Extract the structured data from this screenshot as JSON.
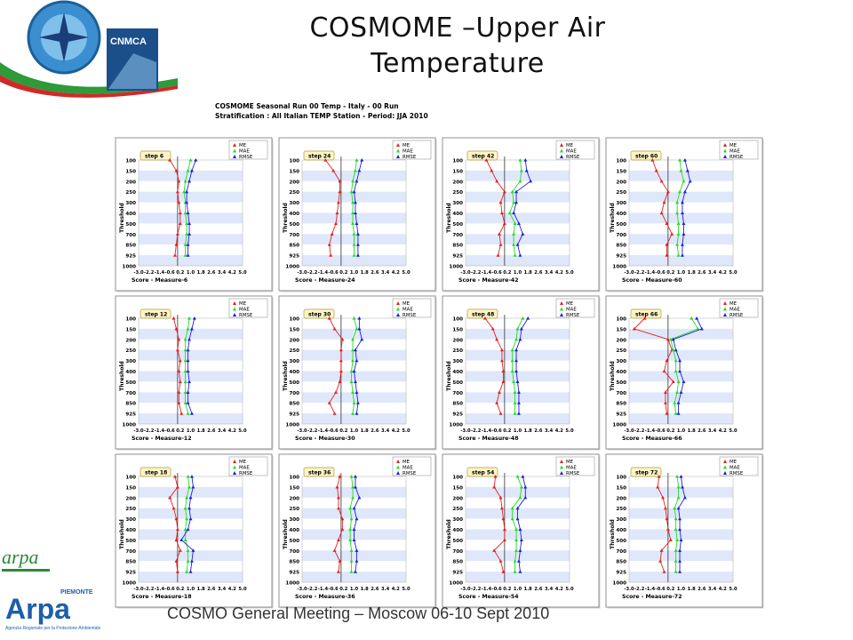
{
  "slide": {
    "title_line1": "COSMOME –Upper Air",
    "title_line2": "Temperature",
    "panel_title_line1": "COSMOME Seasonal Run 00 Temp - Italy - 00 Run",
    "panel_title_line2": "Stratification : All Italian TEMP Station  - Period: JJA 2010",
    "footer": "COSMO General Meeting – Moscow 06-10 Sept 2010",
    "logo_texts": [
      "CNMCA",
      "arpa",
      "Arpa",
      "PIEMONTE",
      "Agenzia Regionale per la Protezione Ambientale"
    ]
  },
  "colors": {
    "me": "#e8201e",
    "mae": "#22dd22",
    "rmse": "#1a22d8",
    "band": "#dfe7fb",
    "frame": "#909090",
    "blue_header": "#2a7fc8"
  },
  "chart_data": [
    {
      "type": "line",
      "step_label": "step 6",
      "xlabel": "Score - Measure-6",
      "ylabel": "Threshold",
      "y_categories": [
        "100",
        "150",
        "200",
        "250",
        "300",
        "400",
        "500",
        "700",
        "850",
        "925",
        "1000"
      ],
      "x_ticks": [
        "-3.0",
        "-2.2",
        "-1.4",
        "-0.6",
        "0.2",
        "1.0",
        "1.8",
        "2.6",
        "3.4",
        "4.2",
        "5.0"
      ],
      "xlim": [
        -3.0,
        5.0
      ],
      "legend": [
        "ME",
        "MAE",
        "RMSE"
      ],
      "series": [
        {
          "name": "ME",
          "values": [
            -0.6,
            -0.1,
            0.1,
            0.0,
            0.1,
            0.2,
            0.2,
            0.0,
            -0.1,
            -0.2
          ]
        },
        {
          "name": "MAE",
          "values": [
            1.0,
            0.8,
            0.6,
            0.5,
            0.6,
            0.6,
            0.7,
            0.7,
            0.6,
            0.6
          ]
        },
        {
          "name": "RMSE",
          "values": [
            1.4,
            1.1,
            0.9,
            0.7,
            0.7,
            0.8,
            0.9,
            0.9,
            0.8,
            0.8
          ]
        }
      ]
    },
    {
      "type": "line",
      "step_label": "step 24",
      "xlabel": "Score - Measure-24",
      "ylabel": "Threshold",
      "y_categories": [
        "100",
        "150",
        "200",
        "250",
        "300",
        "400",
        "500",
        "700",
        "850",
        "925",
        "1000"
      ],
      "x_ticks": [
        "-3.0",
        "-2.2",
        "-1.4",
        "-0.6",
        "0.2",
        "1.0",
        "1.8",
        "2.6",
        "3.4",
        "4.2",
        "5.0"
      ],
      "xlim": [
        -3.0,
        5.0
      ],
      "legend": [
        "ME",
        "MAE",
        "RMSE"
      ],
      "series": [
        {
          "name": "ME",
          "values": [
            -1.2,
            -0.6,
            -0.1,
            -0.1,
            -0.2,
            -0.3,
            -0.4,
            -0.7,
            -0.9,
            -0.8
          ]
        },
        {
          "name": "MAE",
          "values": [
            1.2,
            1.1,
            0.9,
            0.8,
            0.9,
            0.9,
            0.9,
            1.0,
            1.0,
            1.0
          ]
        },
        {
          "name": "RMSE",
          "values": [
            1.6,
            1.4,
            1.2,
            1.0,
            1.1,
            1.1,
            1.2,
            1.3,
            1.3,
            1.3
          ]
        }
      ]
    },
    {
      "type": "line",
      "step_label": "step 42",
      "xlabel": "Score - Measure-42",
      "ylabel": "Threshold",
      "y_categories": [
        "100",
        "150",
        "200",
        "250",
        "300",
        "400",
        "500",
        "700",
        "850",
        "925",
        "1000"
      ],
      "x_ticks": [
        "-3.0",
        "-2.2",
        "-1.4",
        "-0.6",
        "0.2",
        "1.0",
        "1.8",
        "2.6",
        "3.4",
        "4.2",
        "5.0"
      ],
      "xlim": [
        -3.0,
        5.0
      ],
      "legend": [
        "ME",
        "MAE",
        "RMSE"
      ],
      "series": [
        {
          "name": "ME",
          "values": [
            -1.4,
            -1.0,
            -0.6,
            0.0,
            -0.3,
            -0.2,
            0.0,
            -0.4,
            -0.3,
            -0.5
          ]
        },
        {
          "name": "MAE",
          "values": [
            1.2,
            1.3,
            1.2,
            0.6,
            0.7,
            0.4,
            0.8,
            0.7,
            0.7,
            0.8
          ]
        },
        {
          "name": "RMSE",
          "values": [
            1.6,
            1.7,
            2.0,
            0.9,
            0.9,
            0.7,
            1.1,
            1.4,
            1.0,
            1.2
          ]
        }
      ]
    },
    {
      "type": "line",
      "step_label": "step 60",
      "xlabel": "Score - Measure-60",
      "ylabel": "Threshold",
      "y_categories": [
        "100",
        "150",
        "200",
        "250",
        "300",
        "400",
        "500",
        "700",
        "850",
        "925",
        "1000"
      ],
      "x_ticks": [
        "-3.0",
        "-2.2",
        "-1.4",
        "-0.6",
        "0.2",
        "1.0",
        "1.8",
        "2.6",
        "3.4",
        "4.2",
        "5.0"
      ],
      "xlim": [
        -3.0,
        5.0
      ],
      "legend": [
        "ME",
        "MAE",
        "RMSE"
      ],
      "series": [
        {
          "name": "ME",
          "values": [
            -1.2,
            -0.9,
            -0.5,
            0.0,
            -0.3,
            -0.5,
            -0.1,
            0.3,
            -0.1,
            -0.1
          ]
        },
        {
          "name": "MAE",
          "values": [
            0.9,
            1.0,
            1.2,
            0.9,
            0.7,
            0.7,
            0.8,
            0.8,
            0.7,
            0.8
          ]
        },
        {
          "name": "RMSE",
          "values": [
            1.3,
            1.5,
            1.7,
            1.3,
            1.1,
            1.1,
            1.2,
            1.2,
            1.1,
            1.1
          ]
        }
      ]
    },
    {
      "type": "line",
      "step_label": "step 12",
      "xlabel": "Score - Measure-12",
      "ylabel": "Threshold",
      "y_categories": [
        "100",
        "150",
        "200",
        "250",
        "300",
        "400",
        "500",
        "700",
        "850",
        "925",
        "1000"
      ],
      "x_ticks": [
        "-3.0",
        "-2.2",
        "-1.4",
        "-0.6",
        "0.2",
        "1.0",
        "1.8",
        "2.6",
        "3.4",
        "4.2",
        "5.0"
      ],
      "xlim": [
        -3.0,
        5.0
      ],
      "legend": [
        "ME",
        "MAE",
        "RMSE"
      ],
      "series": [
        {
          "name": "ME",
          "values": [
            -0.3,
            -0.1,
            0.1,
            0.0,
            0.2,
            0.1,
            0.2,
            0.1,
            0.1,
            0.3
          ]
        },
        {
          "name": "MAE",
          "values": [
            0.9,
            0.8,
            0.6,
            0.6,
            0.6,
            0.6,
            0.6,
            0.6,
            0.6,
            0.8
          ]
        },
        {
          "name": "RMSE",
          "values": [
            1.3,
            1.1,
            0.9,
            0.8,
            0.8,
            0.8,
            0.9,
            0.8,
            0.8,
            1.1
          ]
        }
      ]
    },
    {
      "type": "line",
      "step_label": "step 30",
      "xlabel": "Score - Measure-30",
      "ylabel": "Threshold",
      "y_categories": [
        "100",
        "150",
        "200",
        "250",
        "300",
        "400",
        "500",
        "700",
        "850",
        "925",
        "1000"
      ],
      "x_ticks": [
        "-3.0",
        "-2.2",
        "-1.4",
        "-0.6",
        "0.2",
        "1.0",
        "1.8",
        "2.6",
        "3.4",
        "4.2",
        "5.0"
      ],
      "xlim": [
        -3.0,
        5.0
      ],
      "legend": [
        "ME",
        "MAE",
        "RMSE"
      ],
      "series": [
        {
          "name": "ME",
          "values": [
            -0.9,
            -0.5,
            0.1,
            0.0,
            0.0,
            0.0,
            -0.1,
            -0.4,
            -0.9,
            -0.5
          ]
        },
        {
          "name": "MAE",
          "values": [
            1.0,
            1.2,
            0.9,
            0.9,
            0.9,
            0.8,
            0.8,
            0.9,
            1.0,
            0.9
          ]
        },
        {
          "name": "RMSE",
          "values": [
            1.4,
            1.4,
            1.6,
            1.1,
            1.2,
            1.0,
            1.1,
            1.2,
            1.3,
            1.2
          ]
        }
      ]
    },
    {
      "type": "line",
      "step_label": "step 48",
      "xlabel": "Score - Measure-48",
      "ylabel": "Threshold",
      "y_categories": [
        "100",
        "150",
        "200",
        "250",
        "300",
        "400",
        "500",
        "700",
        "850",
        "925",
        "1000"
      ],
      "x_ticks": [
        "-3.0",
        "-2.2",
        "-1.4",
        "-0.6",
        "0.2",
        "1.0",
        "1.8",
        "2.6",
        "3.4",
        "4.2",
        "5.0"
      ],
      "xlim": [
        -3.0,
        5.0
      ],
      "legend": [
        "ME",
        "MAE",
        "RMSE"
      ],
      "series": [
        {
          "name": "ME",
          "values": [
            -1.5,
            -0.9,
            -0.6,
            -0.2,
            -0.2,
            -0.1,
            -0.1,
            -0.4,
            -0.6,
            -0.3
          ]
        },
        {
          "name": "MAE",
          "values": [
            1.4,
            1.0,
            0.9,
            0.6,
            0.6,
            0.6,
            0.7,
            0.8,
            0.8,
            0.8
          ]
        },
        {
          "name": "RMSE",
          "values": [
            1.8,
            1.3,
            1.2,
            0.9,
            0.9,
            0.9,
            1.0,
            1.1,
            1.1,
            1.1
          ]
        }
      ]
    },
    {
      "type": "line",
      "step_label": "step 66",
      "xlabel": "Score - Measure-66",
      "ylabel": "Threshold",
      "y_categories": [
        "100",
        "150",
        "200",
        "250",
        "300",
        "400",
        "500",
        "700",
        "850",
        "925",
        "1000"
      ],
      "x_ticks": [
        "-3.0",
        "-2.2",
        "-1.4",
        "-0.6",
        "0.2",
        "1.0",
        "1.8",
        "2.6",
        "3.4",
        "4.2",
        "5.0"
      ],
      "xlim": [
        -3.0,
        5.0
      ],
      "legend": [
        "ME",
        "MAE",
        "RMSE"
      ],
      "series": [
        {
          "name": "ME",
          "values": [
            -1.8,
            -2.6,
            0.0,
            0.3,
            -0.1,
            -0.3,
            0.4,
            -0.2,
            -0.2,
            -0.1
          ]
        },
        {
          "name": "MAE",
          "values": [
            1.8,
            2.3,
            0.2,
            0.4,
            0.6,
            0.6,
            0.8,
            0.7,
            0.5,
            0.6
          ]
        },
        {
          "name": "RMSE",
          "values": [
            2.2,
            2.6,
            0.4,
            0.6,
            0.9,
            0.9,
            1.2,
            1.0,
            0.8,
            0.8
          ]
        }
      ]
    },
    {
      "type": "line",
      "step_label": "step 18",
      "xlabel": "Score - Measure-18",
      "ylabel": "Threshold",
      "y_categories": [
        "100",
        "150",
        "200",
        "250",
        "300",
        "400",
        "500",
        "700",
        "850",
        "925",
        "1000"
      ],
      "x_ticks": [
        "-3.0",
        "-2.2",
        "-1.4",
        "-0.6",
        "0.2",
        "1.0",
        "1.8",
        "2.6",
        "3.4",
        "4.2",
        "5.0"
      ],
      "xlim": [
        -3.0,
        5.0
      ],
      "legend": [
        "ME",
        "MAE",
        "RMSE"
      ],
      "series": [
        {
          "name": "ME",
          "values": [
            -0.2,
            0.0,
            -0.6,
            -0.3,
            -0.1,
            0.0,
            -0.1,
            0.2,
            -0.1,
            0.0
          ]
        },
        {
          "name": "MAE",
          "values": [
            0.8,
            0.9,
            0.7,
            0.6,
            0.7,
            0.6,
            0.6,
            0.8,
            0.8,
            0.7
          ]
        },
        {
          "name": "RMSE",
          "values": [
            1.1,
            1.2,
            1.0,
            0.9,
            1.0,
            0.8,
            0.3,
            1.2,
            1.1,
            1.0
          ]
        }
      ]
    },
    {
      "type": "line",
      "step_label": "step 36",
      "xlabel": "Score - Measure-36",
      "ylabel": "Threshold",
      "y_categories": [
        "100",
        "150",
        "200",
        "250",
        "300",
        "400",
        "500",
        "700",
        "850",
        "925",
        "1000"
      ],
      "x_ticks": [
        "-3.0",
        "-2.2",
        "-1.4",
        "-0.6",
        "0.2",
        "1.0",
        "1.8",
        "2.6",
        "3.4",
        "4.2",
        "5.0"
      ],
      "xlim": [
        -3.0,
        5.0
      ],
      "legend": [
        "ME",
        "MAE",
        "RMSE"
      ],
      "series": [
        {
          "name": "ME",
          "values": [
            -0.1,
            -0.3,
            -0.2,
            -0.2,
            0.1,
            0.1,
            -0.2,
            -0.5,
            -0.1,
            -0.2
          ]
        },
        {
          "name": "MAE",
          "values": [
            0.8,
            0.9,
            0.9,
            0.7,
            0.8,
            0.7,
            0.7,
            0.8,
            0.8,
            0.8
          ]
        },
        {
          "name": "RMSE",
          "values": [
            1.1,
            1.1,
            1.4,
            1.0,
            1.2,
            1.0,
            1.0,
            1.2,
            1.2,
            1.1
          ]
        }
      ]
    },
    {
      "type": "line",
      "step_label": "step 54",
      "xlabel": "Score - Measure-54",
      "ylabel": "Threshold",
      "y_categories": [
        "100",
        "150",
        "200",
        "250",
        "300",
        "400",
        "500",
        "700",
        "850",
        "925",
        "1000"
      ],
      "x_ticks": [
        "-3.0",
        "-2.2",
        "-1.4",
        "-0.6",
        "0.2",
        "1.0",
        "1.8",
        "2.6",
        "3.4",
        "4.2",
        "5.0"
      ],
      "xlim": [
        -3.0,
        5.0
      ],
      "legend": [
        "ME",
        "MAE",
        "RMSE"
      ],
      "series": [
        {
          "name": "ME",
          "values": [
            -0.7,
            -0.8,
            -0.3,
            -0.2,
            -0.1,
            0.0,
            0.0,
            -0.8,
            -0.3,
            -0.1
          ]
        },
        {
          "name": "MAE",
          "values": [
            1.0,
            1.3,
            1.2,
            0.6,
            0.6,
            0.9,
            0.9,
            0.9,
            0.8,
            0.8
          ]
        },
        {
          "name": "RMSE",
          "values": [
            1.4,
            1.6,
            1.6,
            1.0,
            1.0,
            1.2,
            1.3,
            1.2,
            1.1,
            1.2
          ]
        }
      ]
    },
    {
      "type": "line",
      "step_label": "step 72",
      "xlabel": "Score - Measure-72",
      "ylabel": "Threshold",
      "y_categories": [
        "100",
        "150",
        "200",
        "250",
        "300",
        "400",
        "500",
        "700",
        "850",
        "925",
        "1000"
      ],
      "x_ticks": [
        "-3.0",
        "-2.2",
        "-1.4",
        "-0.6",
        "0.2",
        "1.0",
        "1.8",
        "2.6",
        "3.4",
        "4.2",
        "5.0"
      ],
      "xlim": [
        -3.0,
        5.0
      ],
      "legend": [
        "ME",
        "MAE",
        "RMSE"
      ],
      "series": [
        {
          "name": "ME",
          "values": [
            -0.7,
            -0.8,
            -0.4,
            -0.2,
            -0.1,
            0.0,
            0.2,
            -0.5,
            -0.6,
            -0.3
          ]
        },
        {
          "name": "MAE",
          "values": [
            0.7,
            0.8,
            0.8,
            0.5,
            0.6,
            0.6,
            0.7,
            0.6,
            0.6,
            0.6
          ]
        },
        {
          "name": "RMSE",
          "values": [
            1.0,
            1.1,
            1.3,
            0.8,
            0.9,
            0.9,
            1.0,
            0.9,
            0.9,
            0.9
          ]
        }
      ]
    }
  ]
}
